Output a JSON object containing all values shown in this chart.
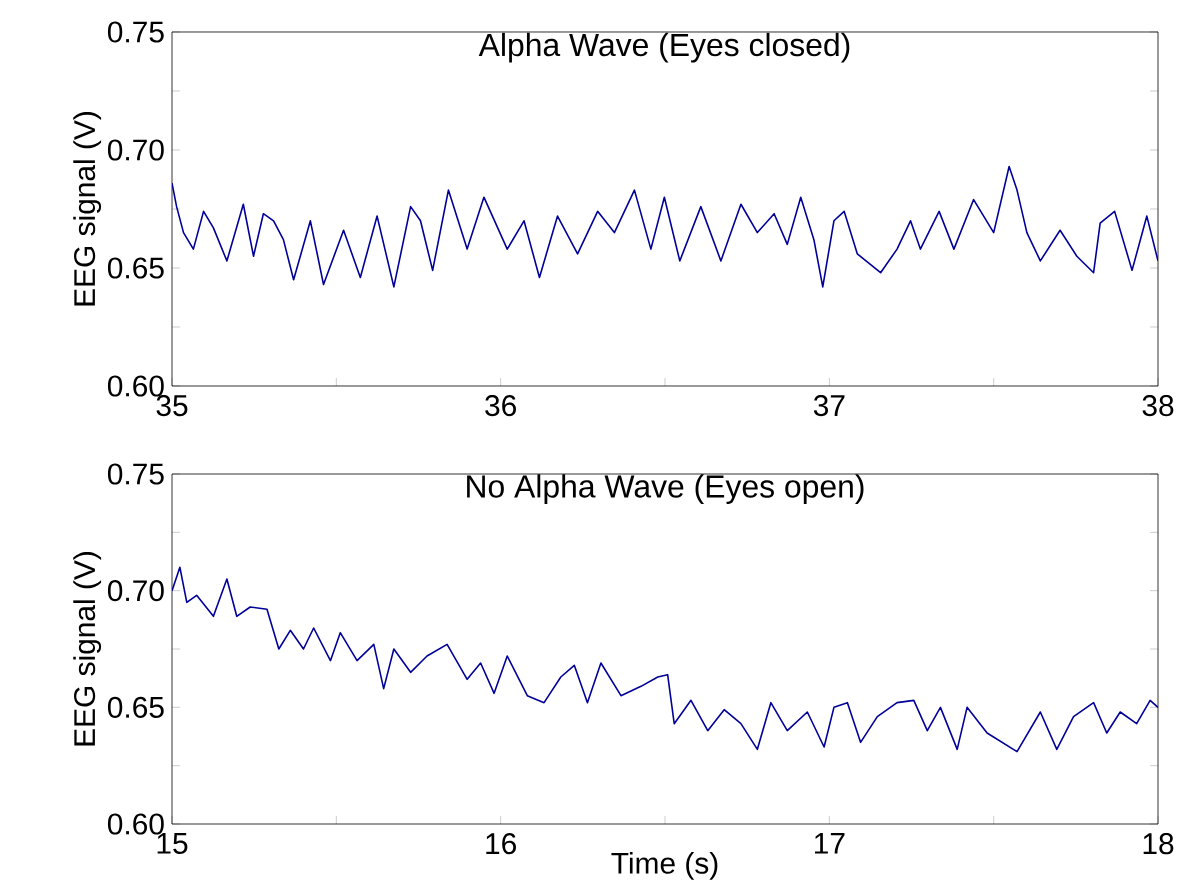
{
  "chart_data": [
    {
      "type": "line",
      "title": "Alpha Wave (Eyes closed)",
      "ylabel": "EEG signal (V)",
      "xlim": [
        35,
        38
      ],
      "ylim": [
        0.6,
        0.75
      ],
      "xticks": [
        35,
        {
          "value": 35.5,
          "label": null
        },
        36,
        {
          "value": 36.5,
          "label": null
        },
        37,
        {
          "value": 37.5,
          "label": null
        },
        38
      ],
      "yticks": [
        {
          "value": 0.6,
          "label": "0.60"
        },
        {
          "value": 0.625,
          "label": null
        },
        {
          "value": 0.65,
          "label": "0.65"
        },
        {
          "value": 0.675,
          "label": null
        },
        {
          "value": 0.7,
          "label": "0.70"
        },
        {
          "value": 0.725,
          "label": null
        },
        {
          "value": 0.75,
          "label": "0.75"
        }
      ],
      "series": [
        {
          "color": "#000099",
          "x": [
            35.0,
            35.014,
            35.035,
            35.065,
            35.096,
            35.126,
            35.167,
            35.217,
            35.248,
            35.278,
            35.309,
            35.339,
            35.37,
            35.421,
            35.461,
            35.522,
            35.573,
            35.624,
            35.675,
            35.726,
            35.756,
            35.793,
            35.841,
            35.898,
            35.949,
            36.02,
            36.071,
            36.118,
            36.173,
            36.234,
            36.295,
            36.346,
            36.407,
            36.457,
            36.498,
            36.545,
            36.609,
            36.67,
            36.731,
            36.781,
            36.832,
            36.872,
            36.913,
            36.953,
            36.98,
            37.014,
            37.045,
            37.085,
            37.156,
            37.206,
            37.247,
            37.277,
            37.334,
            37.379,
            37.439,
            37.5,
            37.547,
            37.571,
            37.601,
            37.642,
            37.702,
            37.753,
            37.804,
            37.824,
            37.868,
            37.921,
            37.966,
            38.0
          ],
          "values": [
            0.686,
            0.676,
            0.665,
            0.658,
            0.674,
            0.667,
            0.653,
            0.677,
            0.655,
            0.673,
            0.67,
            0.662,
            0.645,
            0.67,
            0.643,
            0.666,
            0.646,
            0.672,
            0.642,
            0.676,
            0.67,
            0.649,
            0.683,
            0.658,
            0.68,
            0.658,
            0.67,
            0.646,
            0.672,
            0.656,
            0.674,
            0.665,
            0.683,
            0.658,
            0.68,
            0.653,
            0.676,
            0.653,
            0.677,
            0.665,
            0.673,
            0.66,
            0.68,
            0.662,
            0.642,
            0.67,
            0.674,
            0.656,
            0.648,
            0.658,
            0.67,
            0.658,
            0.674,
            0.658,
            0.679,
            0.665,
            0.693,
            0.683,
            0.665,
            0.653,
            0.666,
            0.655,
            0.648,
            0.669,
            0.674,
            0.649,
            0.672,
            0.653
          ]
        }
      ]
    },
    {
      "type": "line",
      "title": "No Alpha Wave (Eyes open)",
      "xlabel": "Time (s)",
      "ylabel": "EEG signal (V)",
      "xlim": [
        15,
        18
      ],
      "ylim": [
        0.6,
        0.75
      ],
      "xticks": [
        15,
        {
          "value": 15.5,
          "label": null
        },
        16,
        {
          "value": 16.5,
          "label": null
        },
        17,
        {
          "value": 17.5,
          "label": null
        },
        18
      ],
      "yticks": [
        {
          "value": 0.6,
          "label": "0.60"
        },
        {
          "value": 0.625,
          "label": null
        },
        {
          "value": 0.65,
          "label": "0.65"
        },
        {
          "value": 0.675,
          "label": null
        },
        {
          "value": 0.7,
          "label": "0.70"
        },
        {
          "value": 0.725,
          "label": null
        },
        {
          "value": 0.75,
          "label": "0.75"
        }
      ],
      "series": [
        {
          "color": "#000099",
          "x": [
            15.0,
            15.024,
            15.045,
            15.075,
            15.126,
            15.167,
            15.197,
            15.238,
            15.289,
            15.325,
            15.36,
            15.4,
            15.431,
            15.482,
            15.512,
            15.563,
            15.614,
            15.644,
            15.675,
            15.726,
            15.776,
            15.837,
            15.898,
            15.939,
            15.98,
            16.02,
            16.081,
            16.132,
            16.183,
            16.224,
            16.264,
            16.305,
            16.366,
            16.427,
            16.478,
            16.508,
            16.528,
            16.579,
            16.63,
            16.68,
            16.731,
            16.781,
            16.822,
            16.872,
            16.933,
            16.984,
            17.014,
            17.055,
            17.095,
            17.146,
            17.206,
            17.257,
            17.298,
            17.338,
            17.389,
            17.419,
            17.48,
            17.571,
            17.642,
            17.692,
            17.743,
            17.804,
            17.844,
            17.885,
            17.935,
            17.976,
            18.0
          ],
          "values": [
            0.7,
            0.71,
            0.695,
            0.698,
            0.689,
            0.705,
            0.689,
            0.693,
            0.692,
            0.675,
            0.683,
            0.675,
            0.684,
            0.67,
            0.682,
            0.67,
            0.677,
            0.658,
            0.675,
            0.665,
            0.672,
            0.677,
            0.662,
            0.669,
            0.656,
            0.672,
            0.655,
            0.652,
            0.663,
            0.668,
            0.652,
            0.669,
            0.655,
            0.659,
            0.663,
            0.664,
            0.643,
            0.653,
            0.64,
            0.649,
            0.643,
            0.632,
            0.652,
            0.64,
            0.648,
            0.633,
            0.65,
            0.652,
            0.635,
            0.646,
            0.652,
            0.653,
            0.64,
            0.65,
            0.632,
            0.65,
            0.639,
            0.631,
            0.648,
            0.632,
            0.646,
            0.652,
            0.639,
            0.648,
            0.643,
            0.653,
            0.65
          ]
        }
      ]
    }
  ]
}
